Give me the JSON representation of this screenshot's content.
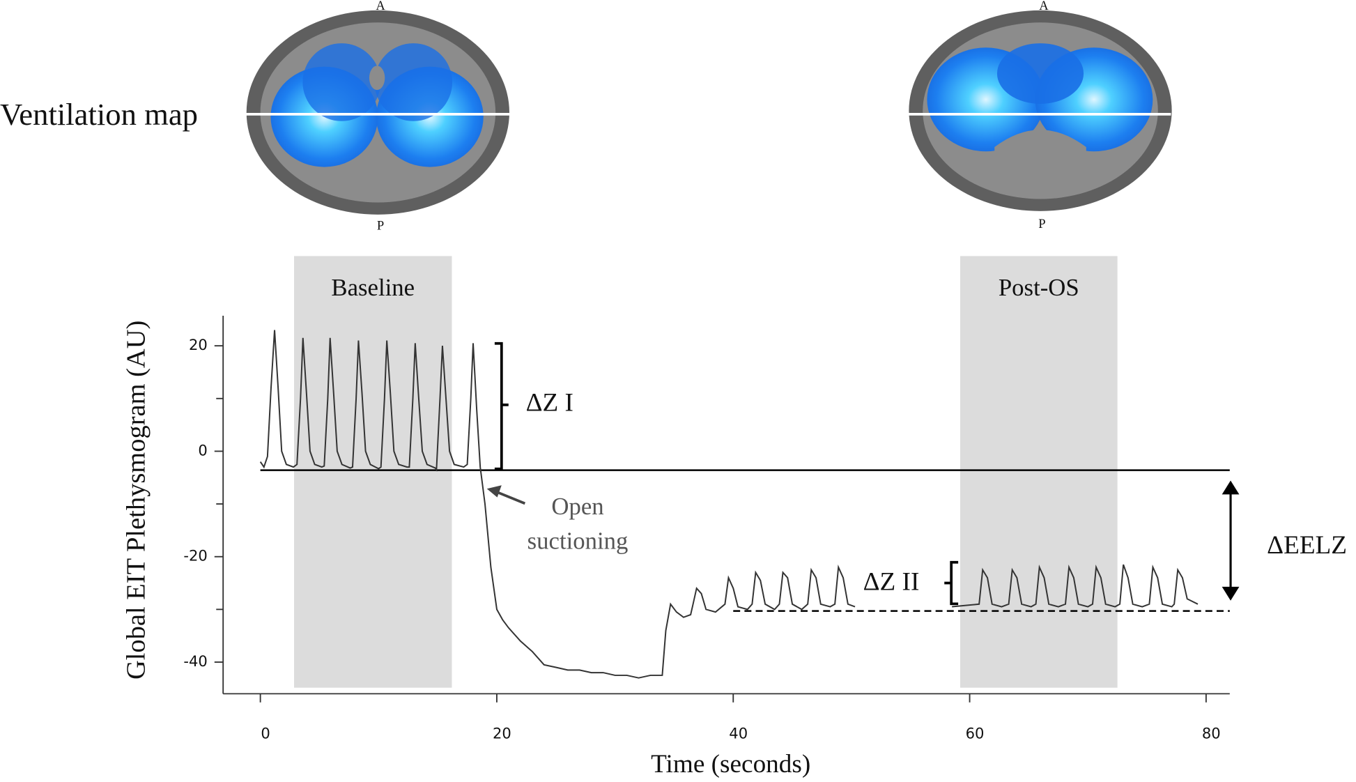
{
  "figure": {
    "ventilation_map_label": "Ventilation map",
    "maps": [
      {
        "top": "A",
        "bottom": "P"
      },
      {
        "top": "A",
        "bottom": "P"
      }
    ]
  },
  "chart_data": {
    "type": "line",
    "x_label": "Time (seconds)",
    "y_label": "Global EIT Plethysmogram (AU)",
    "color": "#333333",
    "xlim": [
      -3.15,
      82
    ],
    "ylim": [
      -46,
      25.7
    ],
    "xticks": [
      0,
      20,
      40,
      60,
      80
    ],
    "yticks": [
      20,
      0,
      -20,
      -40
    ],
    "yminor_ticks": [
      10,
      -10,
      -30
    ],
    "shaded_regions": [
      {
        "label": "Baseline",
        "x": [
          2.85,
          16.2
        ]
      },
      {
        "label": "Post-OS",
        "x": [
          59.2,
          72.5
        ]
      }
    ],
    "reference_lines": [
      {
        "y": -3.6,
        "x": [
          0,
          82
        ],
        "style": "solid"
      },
      {
        "y": -30.3,
        "x": [
          40,
          82
        ],
        "style": "dashed"
      }
    ],
    "annotations": {
      "delta_z1": "ΔZ I",
      "delta_z2": "ΔZ II",
      "delta_eelz": "ΔEELZ",
      "suction": [
        "Open",
        "suctioning"
      ]
    },
    "x": [
      0,
      0.3,
      0.6,
      0.9,
      1.2,
      1.5,
      1.8,
      2.2,
      2.8,
      3.1,
      3.4,
      3.6,
      3.9,
      4.2,
      4.6,
      5.2,
      5.4,
      5.7,
      5.9,
      6.2,
      6.5,
      6.9,
      7.6,
      7.8,
      8.1,
      8.3,
      8.6,
      8.9,
      9.3,
      10,
      10.2,
      10.5,
      10.7,
      11,
      11.3,
      11.7,
      12.4,
      12.6,
      12.9,
      13.1,
      13.4,
      13.7,
      14.1,
      14.8,
      14.9,
      15.2,
      15.4,
      15.7,
      16,
      16.4,
      17.2,
      17.5,
      17.8,
      18,
      18.3,
      18.6,
      19,
      19.5,
      20,
      20.5,
      21,
      22,
      23,
      24,
      25,
      26,
      27,
      28,
      29,
      30,
      31,
      32,
      33,
      34,
      34.3,
      34.7,
      35.2,
      35.8,
      36.4,
      36.6,
      36.9,
      37.3,
      37.7,
      38.5,
      39.3,
      39.6,
      40,
      40.4,
      41.2,
      41.6,
      41.9,
      42.3,
      42.7,
      43.5,
      43.9,
      44.2,
      44.6,
      45,
      45.8,
      46.3,
      46.6,
      47,
      47.4,
      48.2,
      48.6,
      48.9,
      49.3,
      49.7,
      50.3,
      54,
      58.5,
      60.8,
      61.1,
      61.5,
      61.9,
      62.7,
      63.3,
      63.6,
      64,
      64.4,
      65.2,
      65.6,
      65.9,
      66.3,
      66.7,
      67.5,
      68.1,
      68.4,
      68.8,
      69.2,
      70,
      70.4,
      70.7,
      71.1,
      71.5,
      72.3,
      72.7,
      73,
      73.4,
      73.8,
      74.6,
      75.2,
      75.5,
      75.9,
      76.3,
      77.1,
      77.3,
      77.6,
      78,
      78.4,
      79.3
    ],
    "values": [
      -2,
      -3,
      -1,
      12,
      23,
      12,
      0,
      -2.5,
      -3,
      -2.5,
      10,
      21.5,
      11,
      0,
      -2.5,
      -3,
      -2.8,
      10,
      21.5,
      11,
      0,
      -2.5,
      -3.2,
      -3,
      10,
      21,
      11,
      0,
      -2.5,
      -3.3,
      -3,
      10,
      21,
      11,
      0,
      -2.5,
      -3,
      -3,
      10,
      20.5,
      10,
      0,
      -2.5,
      -3.2,
      -3.5,
      10,
      20,
      10,
      0,
      -2.5,
      -3,
      -2.5,
      10,
      20.5,
      8,
      -3,
      -10,
      -22,
      -30,
      -32,
      -33.5,
      -36,
      -38,
      -40.5,
      -41,
      -41.5,
      -41.5,
      -42,
      -42,
      -42.5,
      -42.5,
      -43,
      -42.5,
      -42.5,
      -34,
      -29,
      -30.5,
      -31.5,
      -31,
      -29,
      -26,
      -27,
      -30,
      -30.5,
      -29,
      -24,
      -26,
      -29.5,
      -30,
      -29,
      -23,
      -24.5,
      -29,
      -30,
      -29,
      -23,
      -24,
      -29,
      -30,
      -29,
      -22.5,
      -24,
      -29,
      -29.5,
      -29,
      -22,
      -24,
      -29,
      -29.5,
      null,
      -29.5,
      -29,
      -22.5,
      -24,
      -29,
      -29.5,
      -29,
      -22.5,
      -24,
      -29,
      -29.5,
      -29,
      -22,
      -24,
      -29,
      -29.5,
      -29,
      -22,
      -24,
      -29,
      -29.5,
      -29,
      -22,
      -24,
      -29,
      -29.5,
      -29,
      -21.5,
      -24,
      -29,
      -29.5,
      -29,
      -22,
      -24,
      -29,
      -29.5,
      -29,
      -22.5,
      -24,
      -28,
      -29
    ]
  }
}
